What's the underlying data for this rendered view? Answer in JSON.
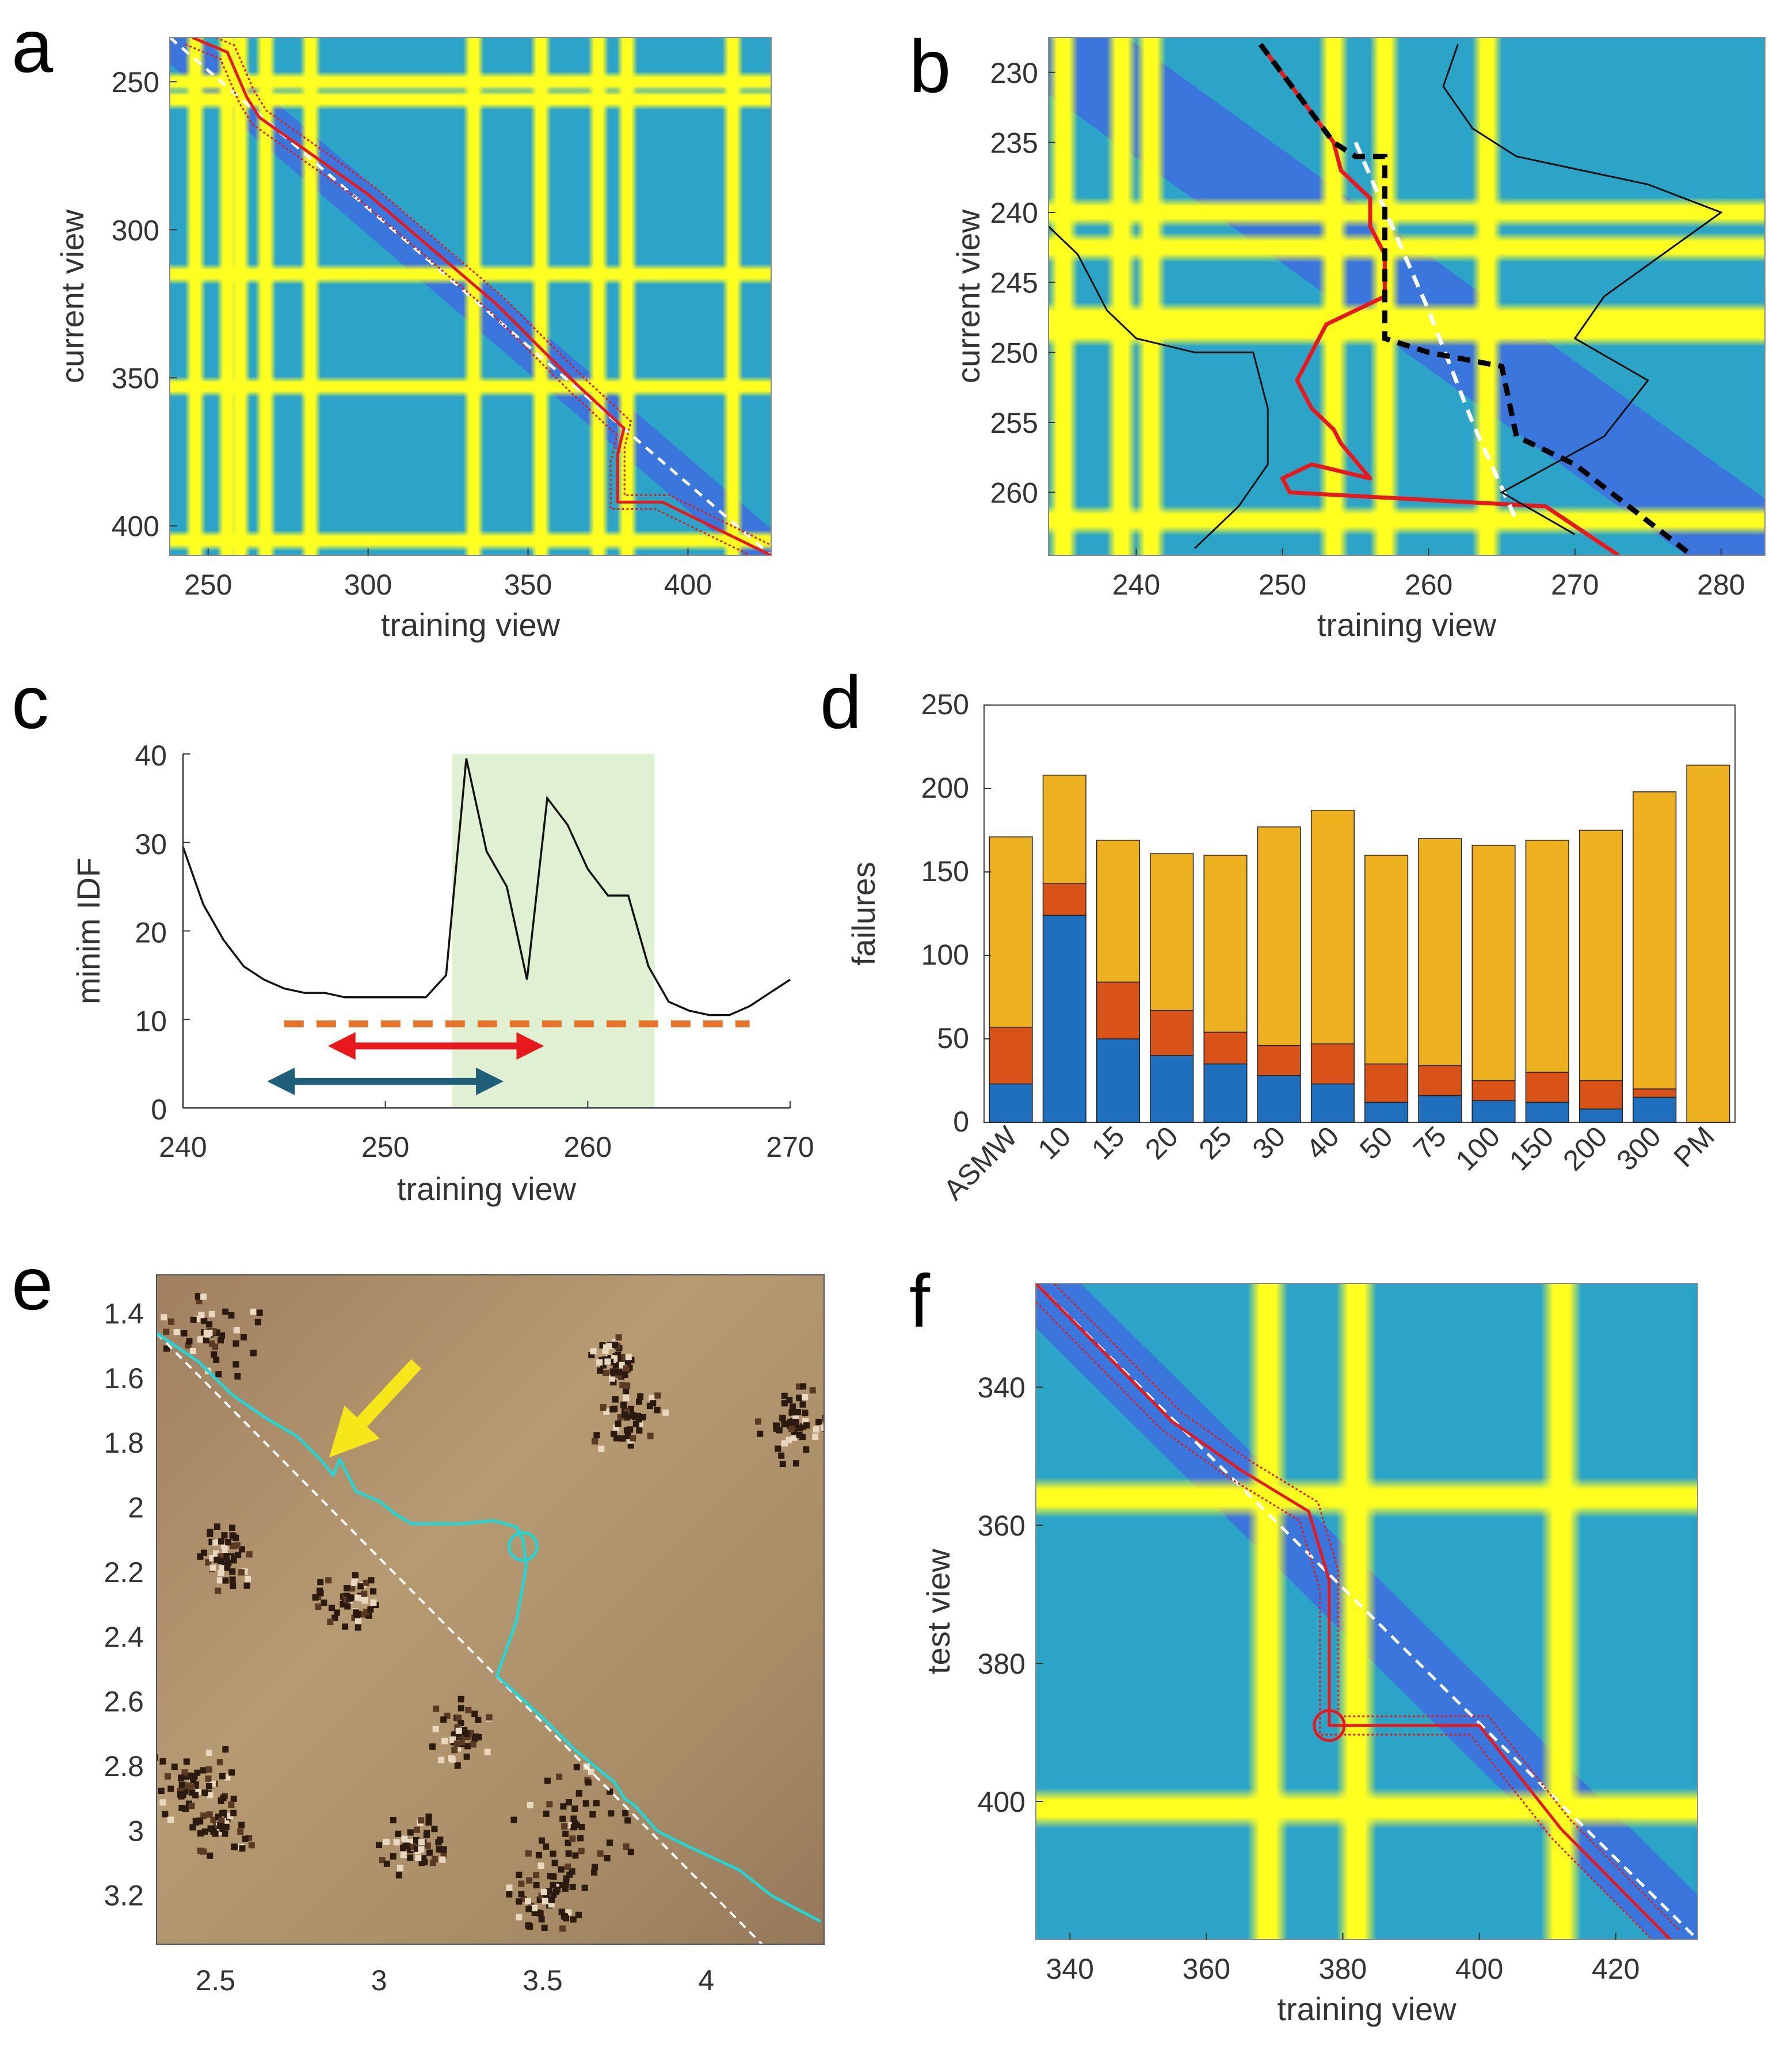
{
  "panels": {
    "a": {
      "label": "a",
      "chart_data": {
        "type": "heatmap",
        "title": "",
        "xlabel": "training view",
        "ylabel": "current view",
        "xlim": [
          238,
          426
        ],
        "ylim": [
          235,
          410
        ],
        "xticks": [
          "250",
          "300",
          "350",
          "400"
        ],
        "yticks": [
          "250",
          "300",
          "350",
          "400"
        ],
        "bright_training_views": [
          246,
          256,
          260,
          268,
          282,
          333,
          354,
          372,
          381,
          414
        ],
        "bright_current_views": [
          250,
          256,
          315,
          353,
          405
        ],
        "series": [
          {
            "name": "ground truth (white dashed)",
            "x": [
              238,
              426
            ],
            "y": [
              235,
              410
            ]
          },
          {
            "name": "matched path (red)",
            "x": [
              245,
              256,
              262,
              266,
              300,
              340,
              365,
              380,
              378,
              378,
              392,
              426
            ],
            "y": [
              235,
              240,
              255,
              262,
              288,
              325,
              352,
              367,
              376,
              392,
              392,
              410
            ]
          }
        ]
      }
    },
    "b": {
      "label": "b",
      "chart_data": {
        "type": "heatmap",
        "title": "",
        "xlabel": "training view",
        "ylabel": "current view",
        "xlim": [
          234,
          283
        ],
        "ylim": [
          227.5,
          264.5
        ],
        "xticks": [
          "240",
          "250",
          "260",
          "270",
          "280"
        ],
        "yticks": [
          "230",
          "235",
          "240",
          "245",
          "250",
          "255",
          "260"
        ],
        "bright_training_views": [
          235,
          239,
          241,
          253.5,
          257,
          264
        ],
        "bright_current_views": [
          240,
          242.5,
          247.5,
          248.5,
          262
        ],
        "series": [
          {
            "name": "best match (red)",
            "x": [
              248.5,
              253.5,
              254,
              256,
              256,
              257,
              257,
              253,
              252,
              251,
              252,
              253.5,
              254,
              256,
              252,
              250,
              250.5,
              268,
              273
            ],
            "y": [
              228,
              235,
              237,
              239,
              241,
              243,
              246,
              248,
              250,
              252,
              254,
              255.5,
              256.5,
              259,
              258,
              259,
              260,
              261,
              264.5
            ]
          },
          {
            "name": "ground truth (white dashed)",
            "x": [
              255,
              260,
              263,
              266
            ],
            "y": [
              235,
              247,
              255,
              262
            ]
          },
          {
            "name": "alternative path (black dashed)",
            "x": [
              248.5,
              253.5,
              255,
              257,
              257,
              260,
              265,
              266,
              270,
              278
            ],
            "y": [
              228,
              235,
              236,
              236,
              249,
              250,
              251,
              256,
              258,
              264.5
            ]
          }
        ]
      }
    },
    "c": {
      "label": "c",
      "chart_data": {
        "type": "line",
        "title": "",
        "xlabel": "training view",
        "ylabel": "minim IDF",
        "xlim": [
          240,
          270
        ],
        "ylim": [
          0,
          40
        ],
        "xticks": [
          "240",
          "250",
          "260",
          "270"
        ],
        "yticks": [
          "0",
          "10",
          "20",
          "30",
          "40"
        ],
        "x": [
          240,
          241,
          242,
          243,
          244,
          245,
          246,
          247,
          248,
          249,
          250,
          251,
          252,
          253,
          254,
          255,
          256,
          257,
          258,
          259,
          260,
          261,
          262,
          263,
          264,
          265,
          266,
          267,
          268,
          269,
          270
        ],
        "series": [
          {
            "name": "minim IDF",
            "values": [
              29.5,
              23,
              19,
              16,
              14.5,
              13.5,
              13,
              13,
              12.5,
              12.5,
              12.5,
              12.5,
              12.5,
              15,
              39.5,
              29,
              25,
              14.5,
              35,
              32,
              27,
              24,
              24,
              16,
              12,
              11,
              10.5,
              10.5,
              11.5,
              13,
              14.5
            ]
          }
        ],
        "threshold": 9.5,
        "highlight_range": [
          253.3,
          263.3
        ],
        "arrows": [
          {
            "name": "red arrow",
            "from": 247.5,
            "to": 257.5,
            "level": 7
          },
          {
            "name": "blue arrow",
            "from": 244.5,
            "to": 255.5,
            "level": 3
          }
        ]
      }
    },
    "d": {
      "label": "d",
      "chart_data": {
        "type": "bar",
        "title": "",
        "xlabel": "",
        "ylabel": "failures",
        "ylim": [
          0,
          250
        ],
        "yticks": [
          "0",
          "50",
          "100",
          "150",
          "200",
          "250"
        ],
        "categories": [
          "ASMW",
          "10",
          "15",
          "20",
          "25",
          "30",
          "40",
          "50",
          "75",
          "100",
          "150",
          "200",
          "300",
          "PM"
        ],
        "series": [
          {
            "name": "blue",
            "color": "#1f6fbf",
            "values": [
              23,
              124,
              50,
              40,
              35,
              28,
              23,
              12,
              16,
              13,
              12,
              8,
              15,
              0
            ]
          },
          {
            "name": "orange",
            "color": "#d95319",
            "values": [
              34,
              19,
              34,
              27,
              19,
              18,
              24,
              23,
              18,
              12,
              18,
              17,
              5,
              0
            ]
          },
          {
            "name": "yellow",
            "color": "#edb120",
            "values": [
              114,
              65,
              85,
              94,
              106,
              131,
              140,
              125,
              136,
              141,
              139,
              150,
              178,
              214
            ]
          }
        ]
      }
    },
    "e": {
      "label": "e",
      "chart_data": {
        "type": "line",
        "title": "",
        "xlabel": "",
        "ylabel": "",
        "xlim": [
          2.32,
          4.36
        ],
        "ylim": [
          1.28,
          3.35
        ],
        "xticks": [
          "2.5",
          "3",
          "3.5",
          "4"
        ],
        "yticks": [
          "1.4",
          "1.6",
          "1.8",
          "2",
          "2.2",
          "2.4",
          "2.6",
          "2.8",
          "3",
          "3.2"
        ],
        "series": [
          {
            "name": "ground truth (white dashed)",
            "x": [
              2.32,
              4.17
            ],
            "y": [
              1.46,
              3.35
            ]
          },
          {
            "name": "estimated trajectory (cyan)",
            "x": [
              2.32,
              2.45,
              2.55,
              2.65,
              2.75,
              2.82,
              2.86,
              2.88,
              2.93,
              3.0,
              3.05,
              3.1,
              3.25,
              3.35,
              3.42,
              3.44,
              3.45,
              3.42,
              3.36,
              3.5,
              3.6,
              3.72,
              3.75,
              3.78,
              3.85,
              3.95,
              4.1,
              4.2,
              4.35
            ],
            "y": [
              1.46,
              1.55,
              1.65,
              1.72,
              1.78,
              1.85,
              1.9,
              1.85,
              1.95,
              1.98,
              2.02,
              2.05,
              2.05,
              2.04,
              2.06,
              2.1,
              2.18,
              2.35,
              2.52,
              2.65,
              2.75,
              2.85,
              2.9,
              2.92,
              3.0,
              3.05,
              3.12,
              3.2,
              3.28
            ]
          }
        ],
        "markers": [
          {
            "name": "circle",
            "x": 3.44,
            "y": 2.12
          },
          {
            "name": "yellow arrow tip",
            "x": 2.85,
            "y": 1.84
          }
        ]
      }
    },
    "f": {
      "label": "f",
      "chart_data": {
        "type": "heatmap",
        "title": "",
        "xlabel": "training view",
        "ylabel": "test view",
        "xlim": [
          335,
          432
        ],
        "ylim": [
          325,
          420
        ],
        "xticks": [
          "340",
          "360",
          "380",
          "400",
          "420"
        ],
        "yticks": [
          "340",
          "360",
          "380",
          "400"
        ],
        "bright_training_views": [
          369,
          382,
          412
        ],
        "bright_current_views": [
          356,
          401
        ],
        "series": [
          {
            "name": "ground truth (white dashed)",
            "x": [
              335,
              432
            ],
            "y": [
              325,
              420
            ]
          },
          {
            "name": "matched path (red)",
            "x": [
              335,
              345,
              355,
              365,
              375,
              378,
              378,
              383,
              400,
              412,
              428
            ],
            "y": [
              325,
              335,
              345,
              352,
              358,
              368,
              389,
              389,
              389,
              404,
              420
            ]
          }
        ],
        "markers": [
          {
            "name": "circle",
            "x": 378,
            "y": 389
          }
        ]
      }
    }
  }
}
